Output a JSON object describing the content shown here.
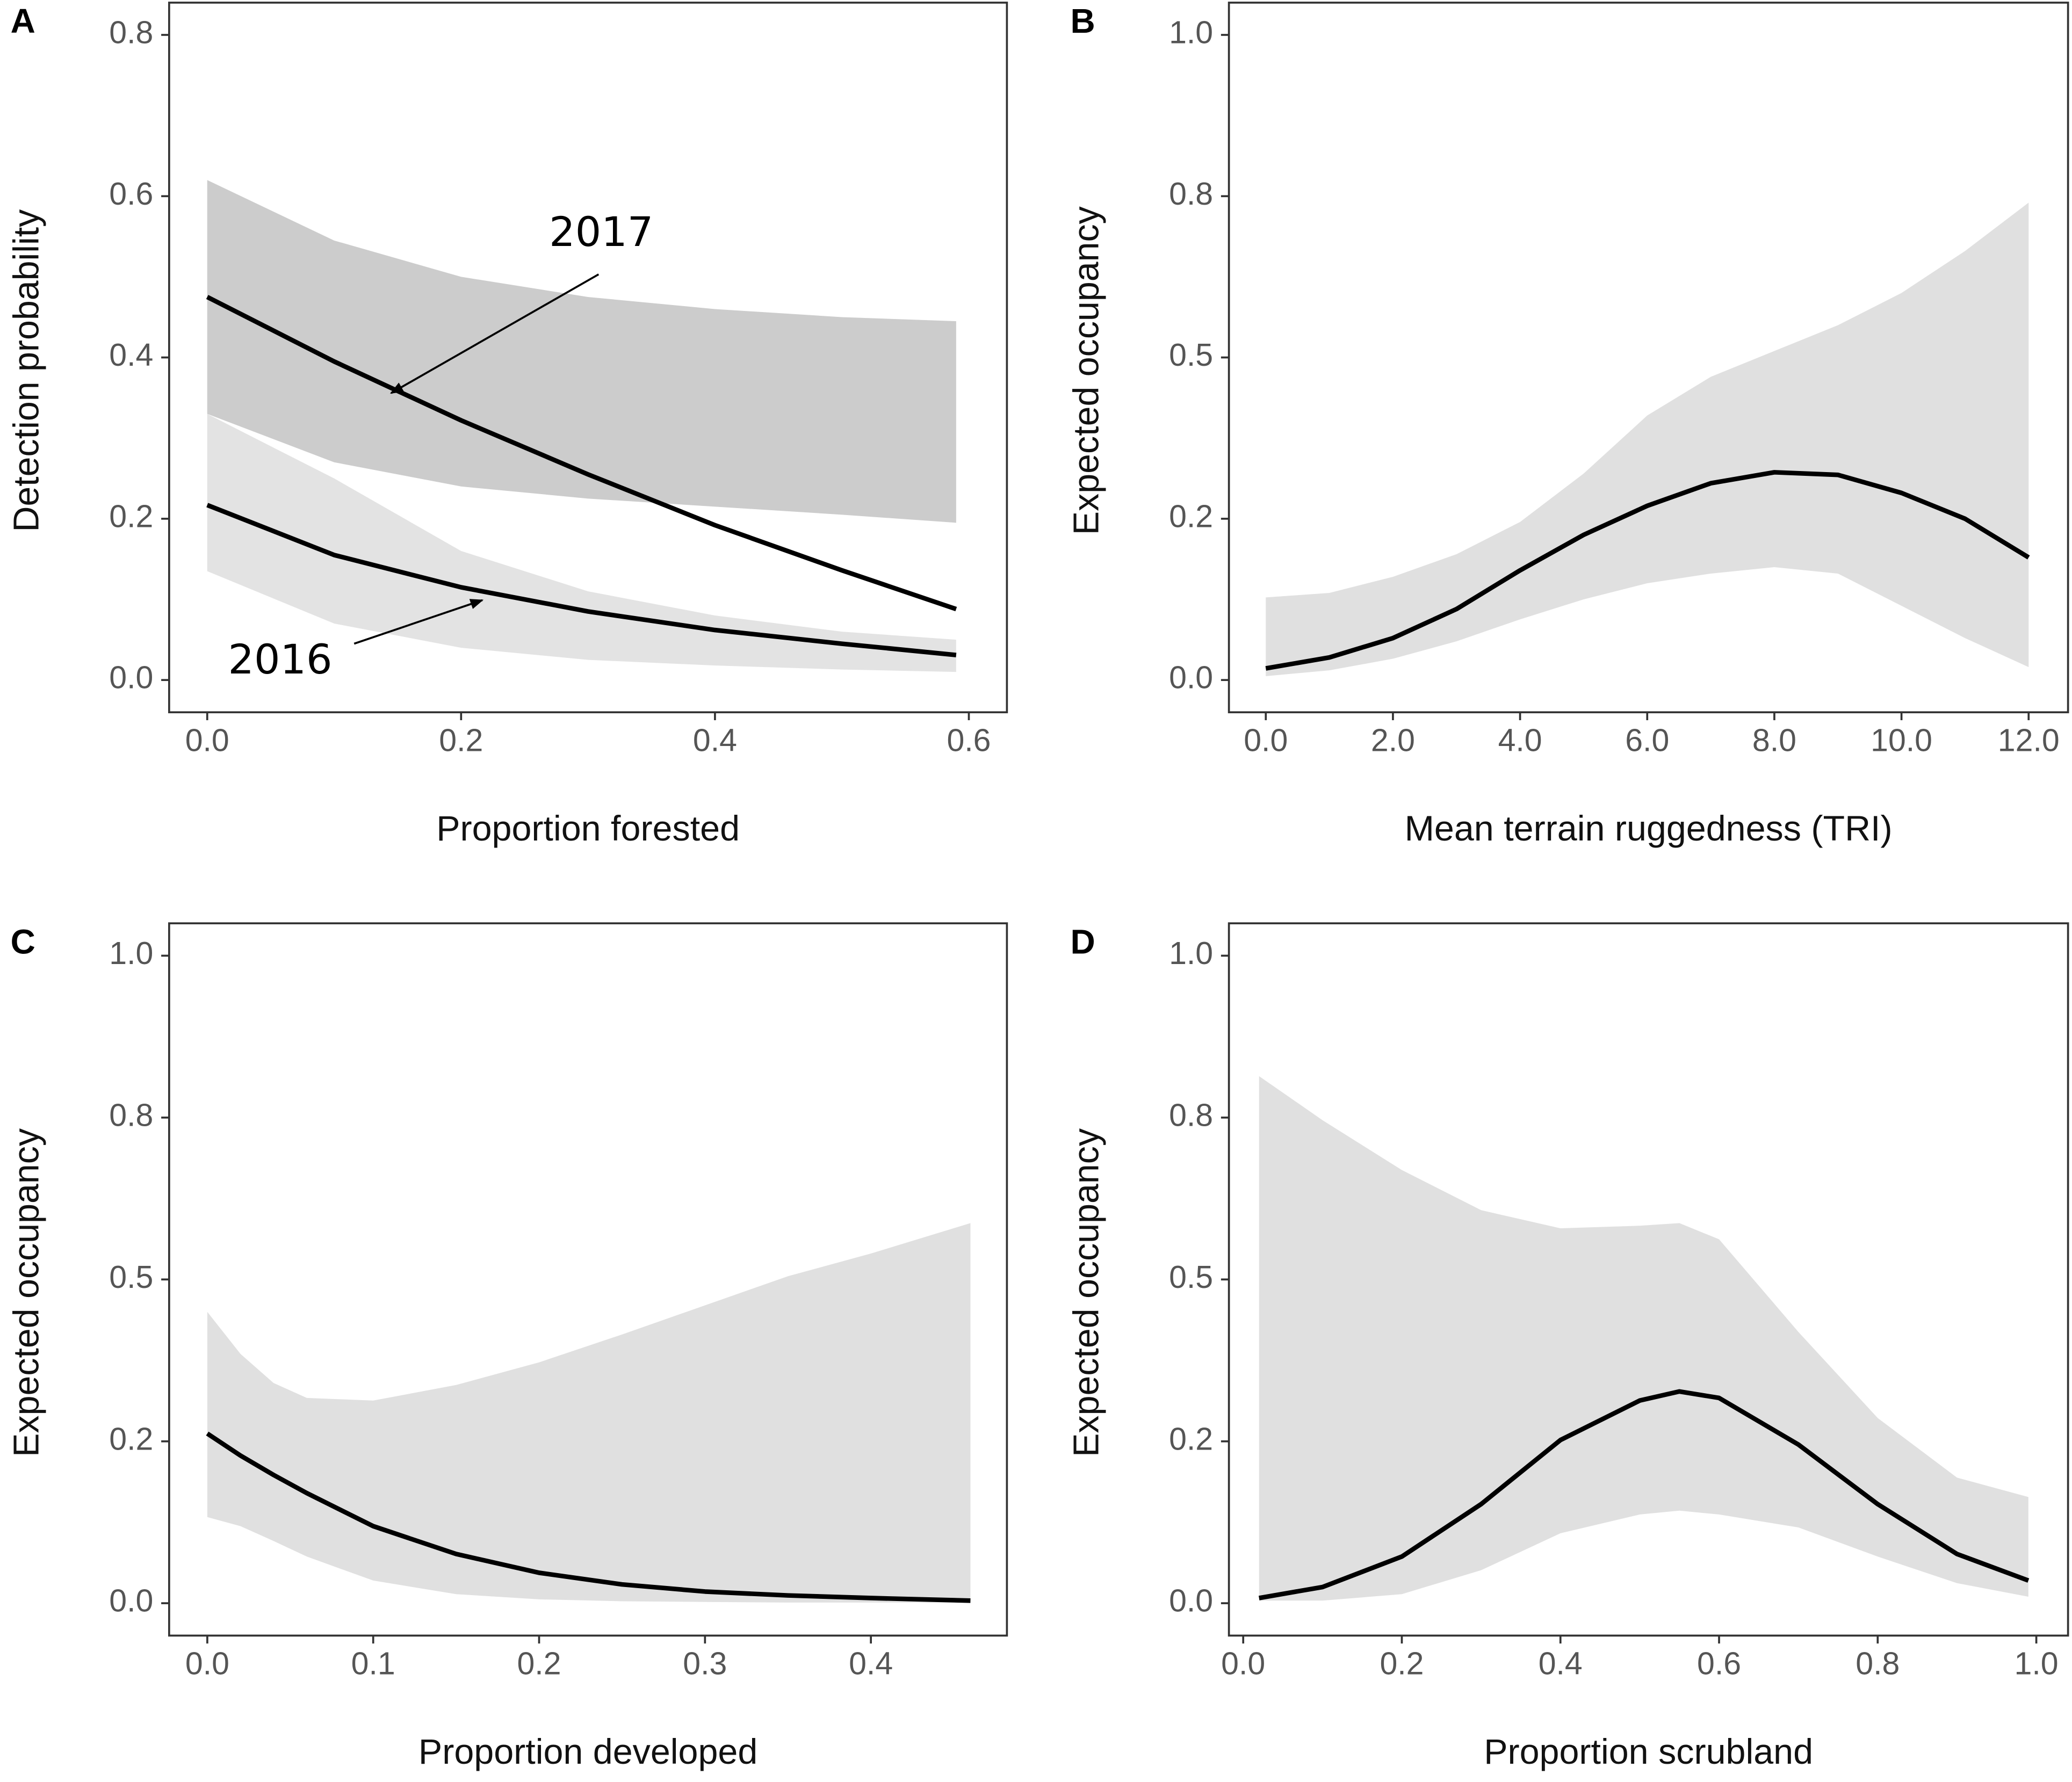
{
  "chart_data": [
    {
      "type": "line",
      "label": "A",
      "x_label": "Proportion forested",
      "y_label": "Detection probability",
      "x": [
        0,
        0.1,
        0.2,
        0.3,
        0.4,
        0.5,
        0.59
      ],
      "series": [
        {
          "name": "2017",
          "color": "#000000",
          "band_color": "rgba(0,0,0,0.2)",
          "values": [
            0.475,
            0.395,
            0.322,
            0.255,
            0.192,
            0.136,
            0.088
          ],
          "lower": [
            0.33,
            0.27,
            0.24,
            0.225,
            0.215,
            0.205,
            0.195
          ],
          "upper": [
            0.62,
            0.545,
            0.5,
            0.475,
            0.46,
            0.45,
            0.445
          ]
        },
        {
          "name": "2016",
          "color": "#000000",
          "band_color": "rgba(0,0,0,0.11)",
          "values": [
            0.217,
            0.155,
            0.115,
            0.085,
            0.062,
            0.045,
            0.031
          ],
          "lower": [
            0.135,
            0.07,
            0.04,
            0.025,
            0.018,
            0.013,
            0.01
          ],
          "upper": [
            0.33,
            0.25,
            0.16,
            0.11,
            0.08,
            0.06,
            0.05
          ]
        }
      ],
      "xlim": [
        -0.03,
        0.63
      ],
      "ylim": [
        -0.04,
        0.84
      ],
      "xticks": [
        {
          "value": 0,
          "label": "0.0"
        },
        0.2,
        0.4,
        0.6
      ],
      "yticks": [
        {
          "value": 0,
          "label": "0.0"
        },
        0.2,
        0.4,
        0.6,
        0.8
      ]
    },
    {
      "type": "line",
      "label": "B",
      "x_label": "Mean terrain ruggedness (TRI)",
      "y_label": "Expected occupancy",
      "x": [
        0,
        1,
        2,
        3,
        4,
        5,
        6,
        7,
        8,
        9,
        10,
        11,
        12
      ],
      "series": [
        {
          "color": "#000000",
          "band_color": "#e0e0e0",
          "values": [
            0.018,
            0.035,
            0.065,
            0.11,
            0.17,
            0.225,
            0.27,
            0.305,
            0.322,
            0.318,
            0.29,
            0.25,
            0.19
          ],
          "lower": [
            0.006,
            0.015,
            0.033,
            0.06,
            0.094,
            0.125,
            0.15,
            0.165,
            0.175,
            0.165,
            0.115,
            0.065,
            0.02
          ],
          "upper": [
            0.128,
            0.135,
            0.16,
            0.195,
            0.245,
            0.32,
            0.41,
            0.47,
            0.51,
            0.55,
            0.6,
            0.665,
            0.74
          ]
        }
      ],
      "xlim": [
        -0.58,
        12.62
      ],
      "ylim": [
        -0.05,
        1.05
      ],
      "xticks": [
        {
          "value": 0,
          "label": "0.0"
        },
        {
          "value": 2,
          "label": "2.0"
        },
        {
          "value": 4,
          "label": "4.0"
        },
        {
          "value": 6,
          "label": "6.0"
        },
        {
          "value": 8,
          "label": "8.0"
        },
        {
          "value": 10,
          "label": "10.0"
        },
        {
          "value": 12,
          "label": "12.0"
        }
      ],
      "yticks": [
        {
          "value": 0,
          "label": "0.0"
        },
        {
          "value": 0.25,
          "label": "0.2"
        },
        0.5,
        {
          "value": 0.75,
          "label": "0.8"
        },
        {
          "value": 1,
          "label": "1.0"
        }
      ]
    },
    {
      "type": "line",
      "label": "C",
      "x_label": "Proportion developed",
      "y_label": "Expected occupancy",
      "x": [
        0,
        0.02,
        0.04,
        0.06,
        0.1,
        0.15,
        0.2,
        0.25,
        0.3,
        0.35,
        0.4,
        0.46
      ],
      "series": [
        {
          "color": "#000000",
          "band_color": "#e0e0e0",
          "values": [
            0.262,
            0.228,
            0.198,
            0.17,
            0.119,
            0.076,
            0.047,
            0.029,
            0.018,
            0.012,
            0.008,
            0.004
          ],
          "lower": [
            0.133,
            0.119,
            0.096,
            0.072,
            0.035,
            0.014,
            0.006,
            0.003,
            0.002,
            0.001,
            0.001,
            0.001
          ],
          "upper": [
            0.45,
            0.385,
            0.34,
            0.317,
            0.313,
            0.337,
            0.372,
            0.415,
            0.46,
            0.505,
            0.54,
            0.587
          ]
        }
      ],
      "xlim": [
        -0.023,
        0.482
      ],
      "ylim": [
        -0.05,
        1.05
      ],
      "xticks": [
        {
          "value": 0,
          "label": "0.0"
        },
        0.1,
        0.2,
        0.3,
        0.4
      ],
      "yticks": [
        {
          "value": 0,
          "label": "0.0"
        },
        {
          "value": 0.25,
          "label": "0.2"
        },
        0.5,
        {
          "value": 0.75,
          "label": "0.8"
        },
        {
          "value": 1,
          "label": "1.0"
        }
      ]
    },
    {
      "type": "line",
      "label": "D",
      "x_label": "Proportion scrubland",
      "y_label": "Expected occupancy",
      "x": [
        0.02,
        0.1,
        0.2,
        0.3,
        0.4,
        0.5,
        0.55,
        0.6,
        0.7,
        0.8,
        0.9,
        0.99
      ],
      "series": [
        {
          "color": "#000000",
          "band_color": "#e0e0e0",
          "values": [
            0.008,
            0.025,
            0.072,
            0.153,
            0.252,
            0.313,
            0.327,
            0.317,
            0.245,
            0.153,
            0.076,
            0.035
          ],
          "lower": [
            0.004,
            0.004,
            0.014,
            0.051,
            0.108,
            0.137,
            0.143,
            0.137,
            0.117,
            0.072,
            0.031,
            0.01
          ],
          "upper": [
            0.814,
            0.746,
            0.669,
            0.607,
            0.579,
            0.583,
            0.587,
            0.562,
            0.419,
            0.286,
            0.194,
            0.164
          ]
        }
      ],
      "xlim": [
        -0.018,
        1.04
      ],
      "ylim": [
        -0.05,
        1.05
      ],
      "xticks": [
        {
          "value": 0,
          "label": "0.0"
        },
        0.2,
        0.4,
        0.6,
        0.8,
        {
          "value": 1,
          "label": "1.0"
        }
      ],
      "yticks": [
        {
          "value": 0,
          "label": "0.0"
        },
        {
          "value": 0.25,
          "label": "0.2"
        },
        0.5,
        {
          "value": 0.75,
          "label": "0.8"
        },
        {
          "value": 1,
          "label": "1.0"
        }
      ]
    }
  ]
}
